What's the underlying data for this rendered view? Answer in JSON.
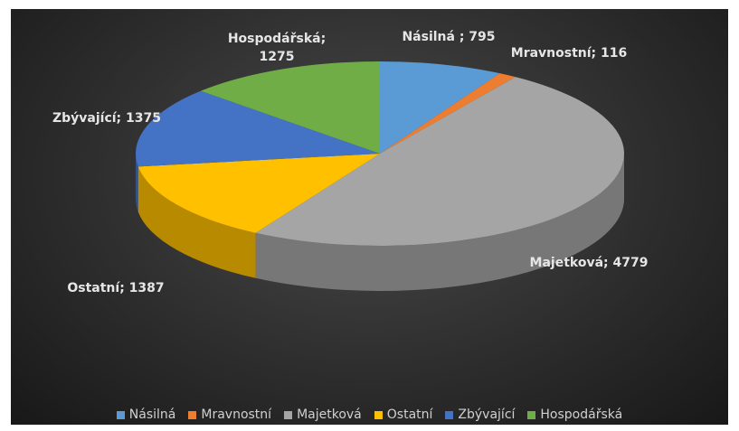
{
  "chart_data": {
    "type": "pie",
    "categories": [
      "Násilná",
      "Mravnostní",
      "Majetková",
      "Ostatní",
      "Zbývající",
      "Hospodářská"
    ],
    "values": [
      795,
      116,
      4779,
      1387,
      1375,
      1275
    ],
    "value_labels": [
      "Násilná ; 795",
      "Mravnostní; 116",
      "Majetková; 4779",
      "Ostatní; 1387",
      "Zbývající; 1375",
      "Hospodářská; 1275"
    ],
    "colors": [
      "#5b9bd5",
      "#ed7d31",
      "#a5a5a5",
      "#ffc000",
      "#4472c4",
      "#70ad47"
    ],
    "legend": "bottom"
  }
}
